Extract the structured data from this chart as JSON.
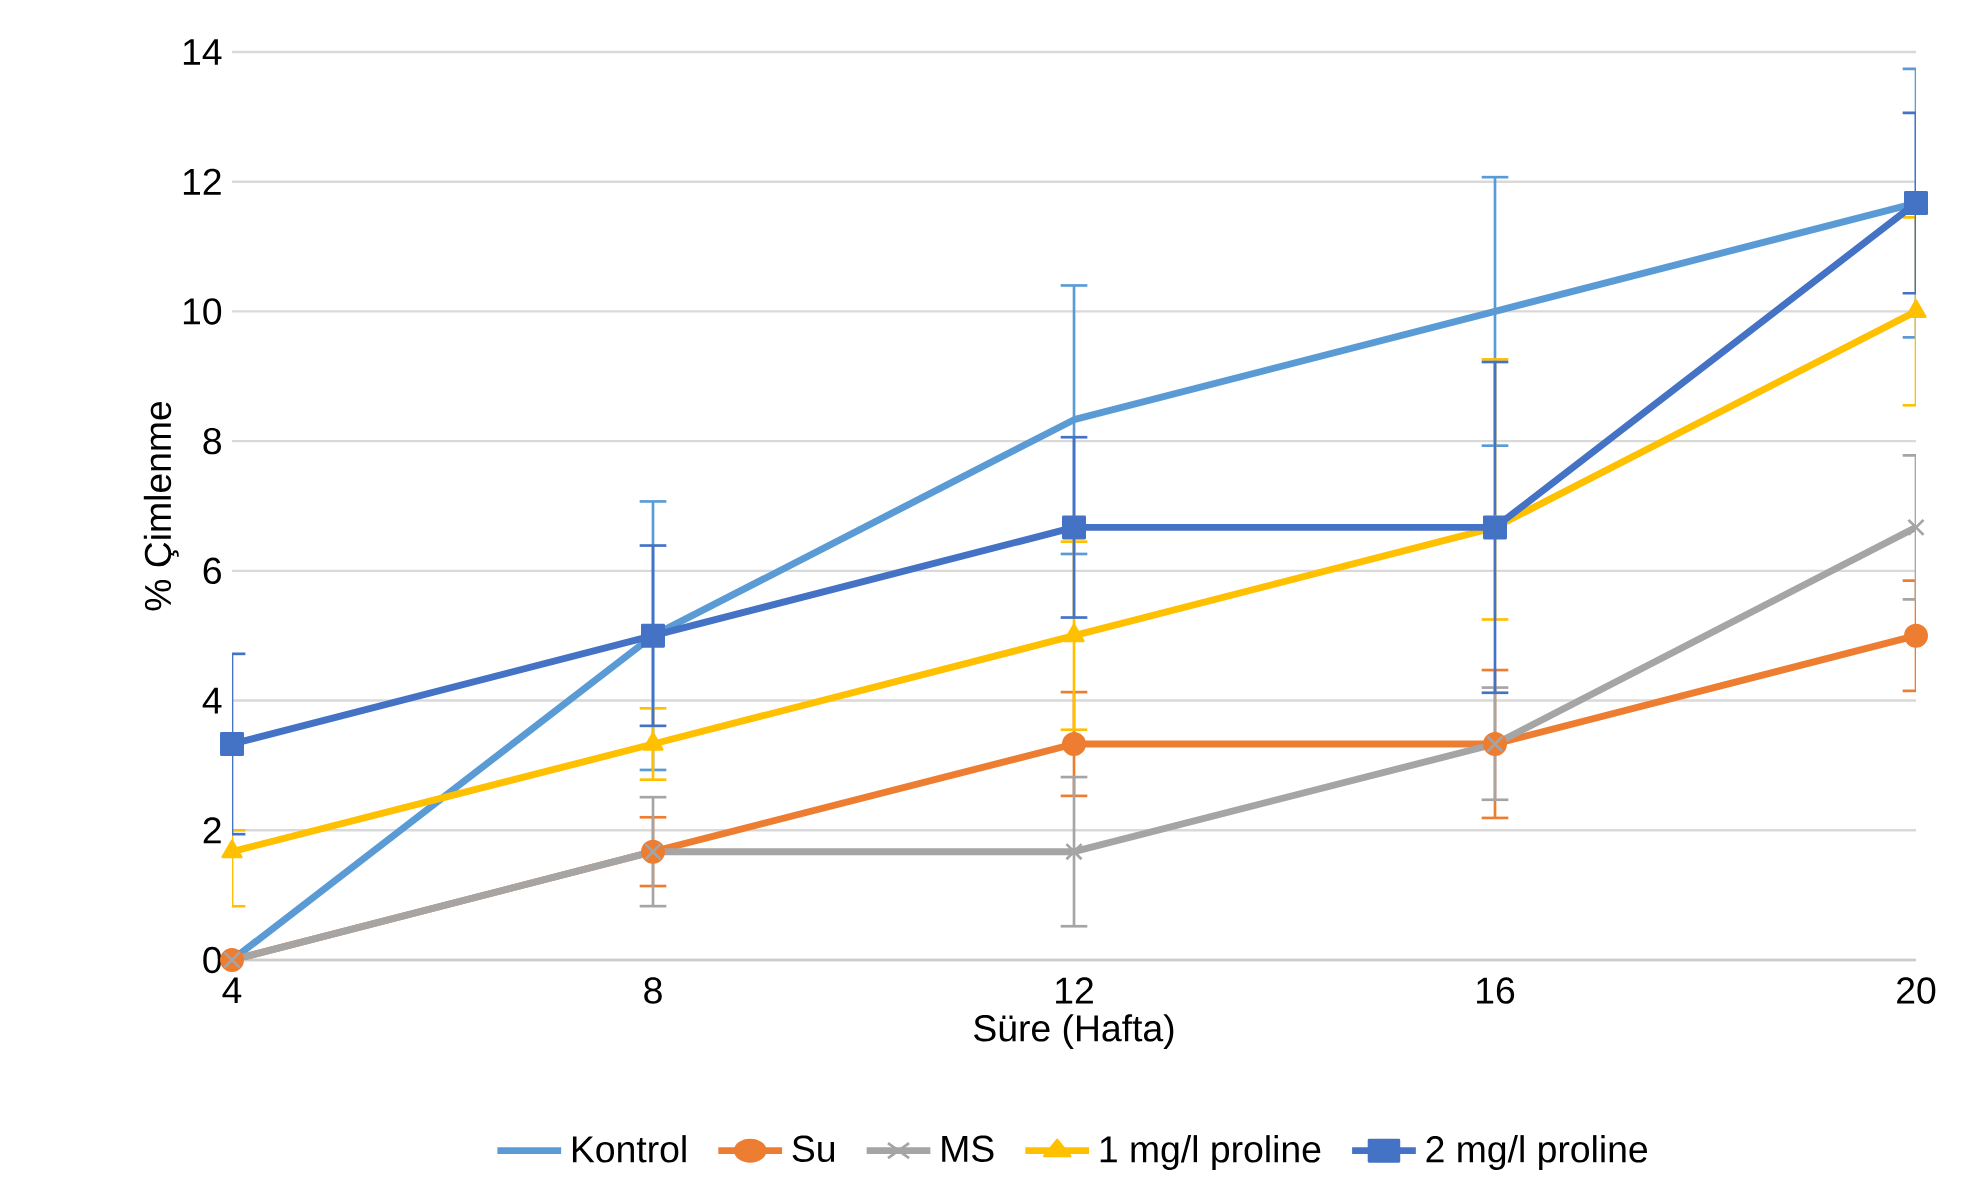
{
  "chart_data": {
    "type": "line",
    "xlabel": "Süre (Hafta)",
    "ylabel": "% Çimlenme",
    "x": [
      4,
      8,
      12,
      16,
      20
    ],
    "xlim": [
      4,
      20
    ],
    "xticks": [
      4,
      8,
      12,
      16,
      20
    ],
    "ylim": [
      0,
      14
    ],
    "yticks": [
      0,
      2,
      4,
      6,
      8,
      10,
      12,
      14
    ],
    "grid": "y",
    "legend": "bottom",
    "line_style": "solid",
    "series": [
      {
        "name": "Kontrol",
        "color": "#5b9bd5",
        "marker": "none",
        "values": [
          0,
          5,
          8.33,
          10,
          11.67
        ],
        "errors": [
          0,
          2.07,
          2.07,
          2.07,
          2.07
        ]
      },
      {
        "name": "Su",
        "color": "#ed7d31",
        "marker": "circle",
        "values": [
          0,
          1.67,
          3.33,
          3.33,
          5
        ],
        "errors": [
          0,
          0.53,
          0.8,
          [
            2.19,
            4.47
          ],
          0.85
        ]
      },
      {
        "name": "MS",
        "color": "#a5a5a5",
        "marker": "cross",
        "values": [
          0,
          1.67,
          1.67,
          3.33,
          6.67
        ],
        "errors": [
          0,
          0.84,
          1.15,
          [
            2.47,
            4.2
          ],
          1.11
        ]
      },
      {
        "name": "1 mg/l proline",
        "color": "#ffc000",
        "marker": "triangle",
        "values": [
          1.67,
          3.33,
          5,
          6.67,
          10
        ],
        "errors": [
          [
            0.83,
            2.0
          ],
          0.55,
          1.45,
          [
            5.25,
            9.26
          ],
          1.45
        ]
      },
      {
        "name": "2 mg/l proline",
        "color": "#4472c4",
        "marker": "square",
        "values": [
          3.33,
          5,
          6.67,
          6.67,
          11.67
        ],
        "errors": [
          1.39,
          1.39,
          1.39,
          2.55,
          1.39
        ]
      }
    ]
  }
}
